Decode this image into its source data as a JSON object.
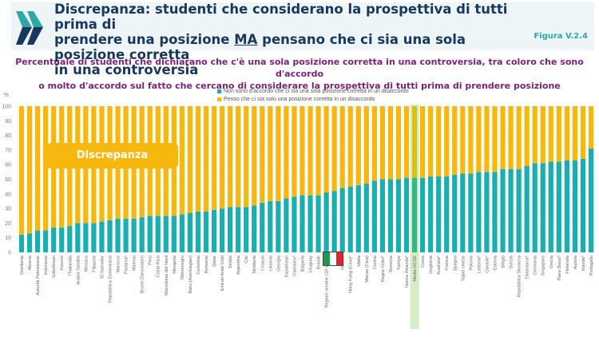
{
  "header": {
    "title_line1": "Discrepanza: studenti che considerano la prospettiva di tutti prima di",
    "title_line2_a": "prendere una posizione ",
    "title_line2_b": "MA",
    "title_line2_c": " pensano che ci sia una sola posizione corretta",
    "title_line3": "in una controversia",
    "figure_label": "Figura V.2.4",
    "logo": "oecd-chevrons-icon"
  },
  "colors": {
    "teal": "#1aaeb0",
    "yellow": "#f6b80f",
    "oecd_avg_teal": "#3db38a",
    "oecd_avg_highlight": "#d6ecc4",
    "title": "#17375e",
    "subtitle": "#7a2277"
  },
  "annotation": {
    "discrepanza_label": "Discrepanza",
    "italy_flag": "italy-flag-icon"
  },
  "chart_data": {
    "type": "bar",
    "stacked": true,
    "title": "Percentuale di studenti che dichiarano che c'è una sola posizione corretta in una controversia, tra coloro che sono d'accordo o molto d'accordo sul fatto che cercano di considerare la prospettiva di tutti prima di prendere posizione",
    "subtitle_line1": "Percentuale di studenti che dichiarano che c'è una sola posizione corretta in una controversia, tra coloro che sono d'accordo",
    "subtitle_line2": "o molto d'accordo sul fatto che cercano di considerare la prospettiva di tutti prima di prendere posizione",
    "ylabel": "%",
    "xlabel": "",
    "ylim": [
      0,
      100
    ],
    "yticks": [
      0,
      10,
      20,
      30,
      40,
      50,
      60,
      70,
      80,
      90,
      100
    ],
    "grid": true,
    "legend_position": "top-center",
    "highlight_category": "Media OCSE",
    "categories": [
      "Giordania",
      "Albania",
      "Autorità Palestinese",
      "Indonesia",
      "Uzbekistan",
      "Kosovo",
      "Thailandia",
      "Arabia Saudita",
      "Messico",
      "Filippine",
      "El Salvador",
      "Repubblica Dominicana",
      "Marocco",
      "Panama*",
      "Malesia",
      "Brunei Darussalam",
      "Perù",
      "Costa Rica",
      "Macedonia del Nord",
      "Mongolia",
      "Montenegro",
      "Baku (Azerbaigian)",
      "Colombia",
      "Romania",
      "Qatar",
      "Emirati Arabi Uniti",
      "Serbia",
      "Argentina",
      "Cile",
      "Moldavia",
      "Croazia",
      "Lituania",
      "Georgia",
      "Kazakistan",
      "Giamaica*",
      "Bulgaria",
      "Uruguay",
      "Brasile",
      "Regioni ucraine (18 su 27)",
      "Italia",
      "Islanda",
      "Hong Kong (Cina)*",
      "Malta",
      "Macao (Cina)",
      "Cechia",
      "Regno Unito*",
      "Slovenia",
      "Turkiye",
      "Nuova Zelanda*",
      "Media OCSE",
      "Corea",
      "Ungheria",
      "Australia*",
      "Francia",
      "Spagna",
      "Taipei cinese",
      "Polonia",
      "Lettonia*",
      "Canada*",
      "Estonia",
      "Belgio",
      "Svezia",
      "Repubblica Slovacca",
      "Danimarca*",
      "Germania",
      "Singapore",
      "Grecia",
      "Paesi Bassi*",
      "Finlandia",
      "Austria",
      "Irlanda*",
      "Portogallo"
    ],
    "series": [
      {
        "name": "Non sono d'accordo che ci sia una sola posizione corretta in un disaccordo",
        "values": [
          12,
          13,
          15,
          15,
          17,
          17,
          18,
          20,
          20,
          20,
          21,
          22,
          23,
          23,
          23,
          24,
          25,
          25,
          25,
          25,
          26,
          27,
          28,
          28,
          29,
          30,
          31,
          31,
          31,
          32,
          34,
          35,
          35,
          37,
          38,
          39,
          39,
          39,
          41,
          42,
          44,
          45,
          46,
          47,
          49,
          50,
          50,
          50,
          51,
          51,
          51,
          52,
          52,
          52,
          53,
          54,
          54,
          55,
          55,
          55,
          57,
          57,
          57,
          59,
          61,
          61,
          62,
          62,
          63,
          63,
          64,
          71
        ]
      },
      {
        "name": "Penso che ci sia solo una posizione corretta in un disaccordo",
        "values": [
          88,
          87,
          85,
          85,
          83,
          83,
          82,
          80,
          80,
          80,
          79,
          78,
          77,
          77,
          77,
          76,
          75,
          75,
          75,
          75,
          74,
          73,
          72,
          72,
          71,
          70,
          69,
          69,
          69,
          68,
          66,
          65,
          65,
          63,
          62,
          61,
          61,
          61,
          59,
          58,
          56,
          55,
          54,
          53,
          51,
          50,
          50,
          50,
          49,
          49,
          49,
          48,
          48,
          48,
          47,
          46,
          46,
          45,
          45,
          45,
          43,
          43,
          43,
          41,
          39,
          39,
          38,
          38,
          37,
          37,
          36,
          29
        ]
      }
    ]
  }
}
